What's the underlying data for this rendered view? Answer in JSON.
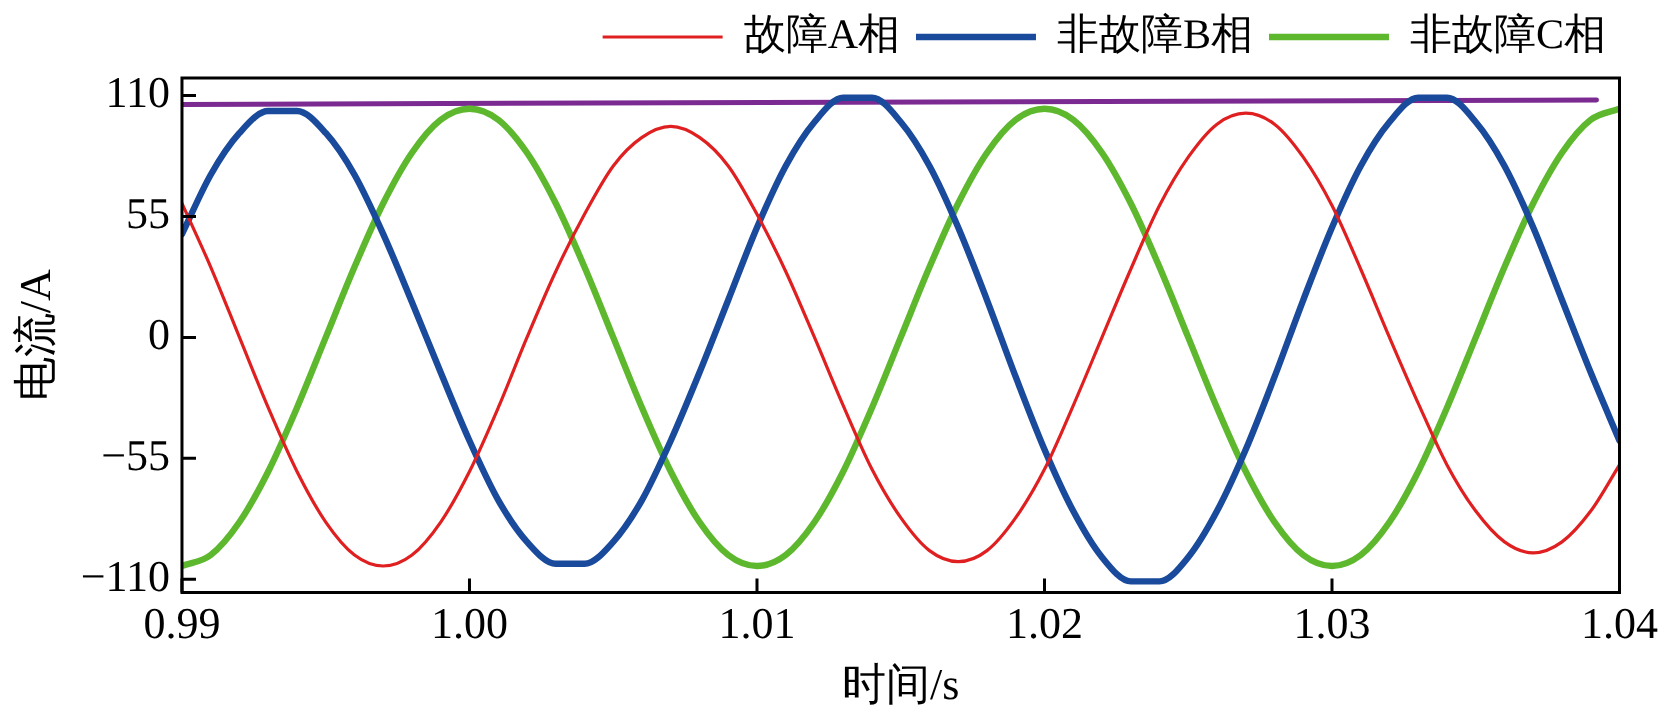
{
  "chart_data": {
    "type": "line",
    "xlabel": "时间/s",
    "ylabel": "电流/A",
    "x": [
      0.99,
      0.991,
      0.992,
      0.993,
      0.994,
      0.995,
      0.996,
      0.997,
      0.998,
      0.999,
      1.0,
      1.001,
      1.002,
      1.003,
      1.004,
      1.005,
      1.006,
      1.007,
      1.008,
      1.009,
      1.01,
      1.011,
      1.012,
      1.013,
      1.014,
      1.015,
      1.016,
      1.017,
      1.018,
      1.019,
      1.02,
      1.021,
      1.022,
      1.023,
      1.024,
      1.025,
      1.026,
      1.027,
      1.028,
      1.029,
      1.03,
      1.031,
      1.032,
      1.033,
      1.034,
      1.035,
      1.036,
      1.037,
      1.038,
      1.039,
      1.04
    ],
    "series": [
      {
        "name": "故障A相",
        "color": "#e02020",
        "values": [
          61,
          32,
          0,
          -32,
          -61,
          -84,
          -99,
          -104,
          -99,
          -84,
          -61,
          -32,
          0,
          30,
          56,
          78,
          91,
          96,
          91,
          78,
          56,
          30,
          0,
          -31,
          -60,
          -82,
          -97,
          -102,
          -97,
          -82,
          -60,
          -31,
          0,
          31,
          60,
          82,
          97,
          102,
          97,
          82,
          60,
          31,
          0,
          -30,
          -58,
          -79,
          -93,
          -98,
          -93,
          -79,
          -58
        ]
      },
      {
        "name": "非故障B相",
        "color": "#1a4a9c",
        "values": [
          47,
          74,
          93,
          103,
          103,
          93,
          74,
          47,
          16,
          -16,
          -47,
          -74,
          -93,
          -103,
          -103,
          -93,
          -74,
          -47,
          -16,
          17,
          50,
          78,
          98,
          109,
          109,
          98,
          78,
          50,
          17,
          -18,
          -51,
          -79,
          -100,
          -111,
          -111,
          -100,
          -79,
          -51,
          -18,
          17,
          50,
          78,
          98,
          109,
          109,
          98,
          78,
          50,
          17,
          -16,
          -47
        ]
      },
      {
        "name": "非故障C相",
        "color": "#5db82e",
        "values": [
          -104,
          -99,
          -84,
          -61,
          -32,
          0,
          32,
          61,
          84,
          99,
          104,
          99,
          84,
          61,
          32,
          0,
          -32,
          -61,
          -84,
          -99,
          -104,
          -99,
          -84,
          -61,
          -32,
          0,
          32,
          61,
          84,
          99,
          104,
          99,
          84,
          61,
          32,
          0,
          -32,
          -61,
          -84,
          -99,
          -104,
          -99,
          -84,
          -61,
          -32,
          0,
          32,
          61,
          84,
          99,
          104
        ]
      },
      {
        "color": "#7a2a90",
        "x": [
          0.99,
          1.0392
        ],
        "values": [
          106,
          108
        ]
      }
    ],
    "xlim": [
      0.99,
      1.04
    ],
    "ylim": [
      -116,
      118
    ],
    "xticks": [
      0.99,
      {
        "value": 1.0,
        "label": "1.00"
      },
      1.01,
      1.02,
      1.03,
      1.04
    ],
    "yticks": [
      110,
      55,
      0,
      -55,
      -110
    ],
    "grid": false,
    "legend": "top",
    "marker": "none",
    "line_style": "solid"
  }
}
